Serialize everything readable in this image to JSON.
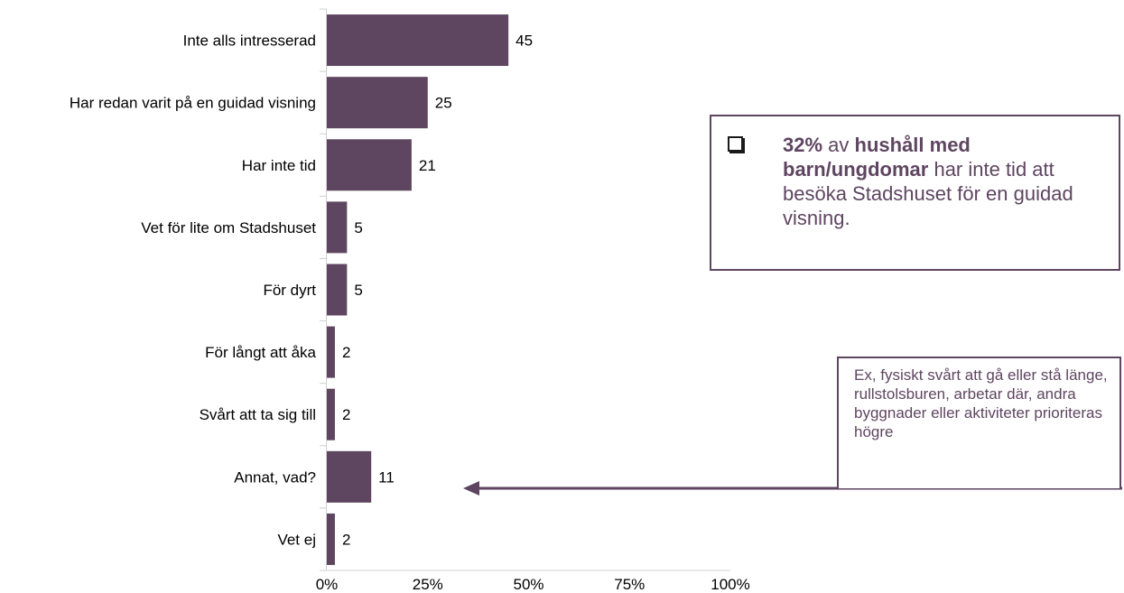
{
  "chart_data": {
    "type": "bar",
    "orientation": "horizontal",
    "categories": [
      "Inte alls intresserad",
      "Har redan varit på en guidad visning",
      "Har inte tid",
      "Vet för lite om Stadshuset",
      "För dyrt",
      "För långt att åka",
      "Svårt att ta sig till",
      "Annat, vad?",
      "Vet ej"
    ],
    "values": [
      45,
      25,
      21,
      5,
      5,
      2,
      2,
      11,
      2
    ],
    "value_labels": [
      "45",
      "25",
      "21",
      "5",
      "5",
      "2",
      "2",
      "11",
      "2"
    ],
    "xlim": [
      0,
      100
    ],
    "xticks": [
      0,
      25,
      50,
      75,
      100
    ],
    "xtick_labels": [
      "0%",
      "25%",
      "50%",
      "75%",
      "100%"
    ],
    "bar_color": "#5e4560",
    "grid": false
  },
  "callout": {
    "pct": "32%",
    "t1": " av ",
    "b1": "hushåll med barn/ungdomar",
    "t2": " har inte tid att besöka Stadshuset för en guidad visning."
  },
  "note": {
    "text": "Ex, fysiskt svårt att gå eller stå länge, rullstolsburen, arbetar där, andra byggnader eller aktiviteter prioriteras högre"
  },
  "colors": {
    "accent": "#5e4560",
    "axis": "#d0d0d0"
  }
}
